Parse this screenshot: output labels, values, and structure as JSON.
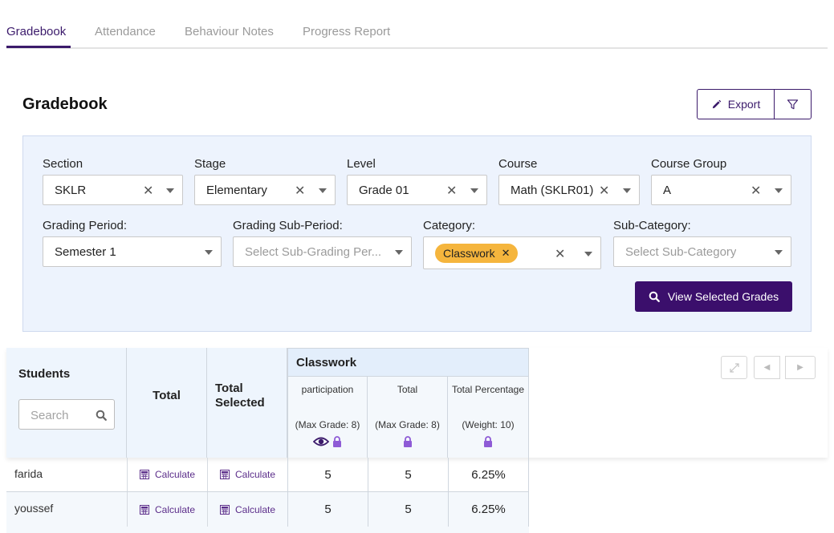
{
  "tabs": [
    {
      "label": "Gradebook"
    },
    {
      "label": "Attendance"
    },
    {
      "label": "Behaviour Notes"
    },
    {
      "label": "Progress Report"
    }
  ],
  "page": {
    "title": "Gradebook"
  },
  "toolbar": {
    "export_label": "Export",
    "export_icon": "pencil-icon",
    "filter_icon": "funnel-icon"
  },
  "filters": {
    "section": {
      "label": "Section",
      "value": "SKLR"
    },
    "stage": {
      "label": "Stage",
      "value": "Elementary"
    },
    "level": {
      "label": "Level",
      "value": "Grade 01"
    },
    "course": {
      "label": "Course",
      "value": "Math (SKLR01)"
    },
    "course_group": {
      "label": "Course Group",
      "value": "A"
    },
    "grading_period": {
      "label": "Grading Period:",
      "value": "Semester 1"
    },
    "grading_sub_period": {
      "label": "Grading Sub-Period:",
      "placeholder": "Select Sub-Grading Per..."
    },
    "category": {
      "label": "Category:",
      "chip": "Classwork"
    },
    "sub_category": {
      "label": "Sub-Category:",
      "placeholder": "Select Sub-Category"
    },
    "view_button": "View Selected Grades"
  },
  "table": {
    "students_header": "Students",
    "search_placeholder": "Search",
    "total_header": "Total",
    "total_selected_header": "Total Selected",
    "group_header": "Classwork",
    "columns": [
      {
        "name": "participation",
        "sub": "(Max Grade: 8)"
      },
      {
        "name": "Total",
        "sub": "(Max Grade: 8)"
      },
      {
        "name": "Total Percentage",
        "sub": "(Weight: 10)"
      }
    ],
    "calculate_label": "Calculate",
    "rows": [
      {
        "name": "farida",
        "participation": "5",
        "total": "5",
        "percentage": "6.25%"
      },
      {
        "name": "youssef",
        "participation": "5",
        "total": "5",
        "percentage": "6.25%"
      }
    ]
  },
  "colors": {
    "brand": "#3b0f6c",
    "chip": "#f5b53d",
    "lock": "#8e5bd6"
  }
}
